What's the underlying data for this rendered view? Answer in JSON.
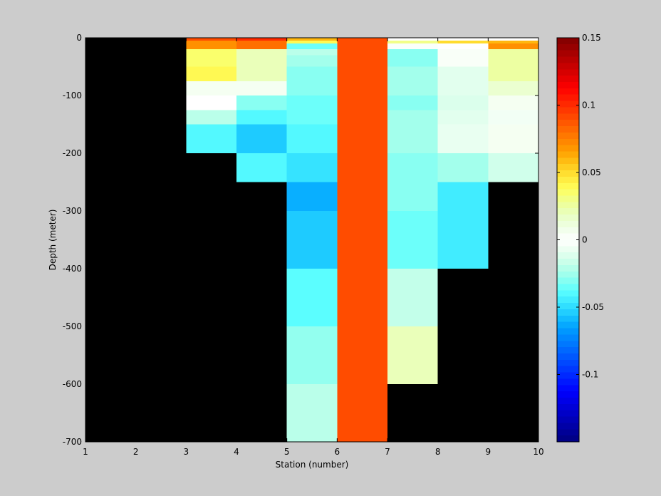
{
  "chart_data": {
    "type": "heatmap",
    "title": "",
    "xlabel": "Station (number)",
    "ylabel": "Depth (meter)",
    "xlim": [
      1,
      10
    ],
    "ylim": [
      -700,
      0
    ],
    "xticks": [
      1,
      2,
      3,
      4,
      5,
      6,
      7,
      8,
      9,
      10
    ],
    "yticks": [
      0,
      -100,
      -200,
      -300,
      -400,
      -500,
      -600,
      -700
    ],
    "background_color": "#000000",
    "colormap": "jet",
    "colorbar": {
      "clim": [
        -0.15,
        0.15
      ],
      "ticks": [
        0.15,
        0.1,
        0.05,
        0,
        -0.05,
        -0.1
      ],
      "tick_labels": [
        "0.15",
        "0.1",
        "0.05",
        "0",
        "-0.05",
        "-0.1"
      ],
      "placement": "right"
    },
    "columns": [
      {
        "x": [
          3,
          4
        ],
        "cells": [
          {
            "y": [
              -5,
              0
            ],
            "v": 0.09
          },
          {
            "y": [
              -20,
              -5
            ],
            "v": 0.07
          },
          {
            "y": [
              -50,
              -20
            ],
            "v": 0.035
          },
          {
            "y": [
              -75,
              -50
            ],
            "v": 0.04
          },
          {
            "y": [
              -100,
              -75
            ],
            "v": 0.005
          },
          {
            "y": [
              -125,
              -100
            ],
            "v": 0.0
          },
          {
            "y": [
              -150,
              -125
            ],
            "v": -0.02
          },
          {
            "y": [
              -200,
              -150
            ],
            "v": -0.04
          }
        ]
      },
      {
        "x": [
          4,
          5
        ],
        "cells": [
          {
            "y": [
              -5,
              0
            ],
            "v": 0.1
          },
          {
            "y": [
              -20,
              -5
            ],
            "v": 0.08
          },
          {
            "y": [
              -50,
              -20
            ],
            "v": 0.02
          },
          {
            "y": [
              -75,
              -50
            ],
            "v": 0.02
          },
          {
            "y": [
              -100,
              -75
            ],
            "v": 0.005
          },
          {
            "y": [
              -125,
              -100
            ],
            "v": -0.03
          },
          {
            "y": [
              -150,
              -125
            ],
            "v": -0.04
          },
          {
            "y": [
              -200,
              -150
            ],
            "v": -0.055
          },
          {
            "y": [
              -250,
              -200
            ],
            "v": -0.04
          }
        ]
      },
      {
        "x": [
          5,
          6
        ],
        "cells": [
          {
            "y": [
              -5,
              0
            ],
            "v": 0.06
          },
          {
            "y": [
              -10,
              -5
            ],
            "v": 0.04
          },
          {
            "y": [
              -20,
              -10
            ],
            "v": -0.035
          },
          {
            "y": [
              -30,
              -20
            ],
            "v": -0.02
          },
          {
            "y": [
              -50,
              -30
            ],
            "v": -0.025
          },
          {
            "y": [
              -100,
              -50
            ],
            "v": -0.03
          },
          {
            "y": [
              -125,
              -100
            ],
            "v": -0.035
          },
          {
            "y": [
              -150,
              -125
            ],
            "v": -0.035
          },
          {
            "y": [
              -200,
              -150
            ],
            "v": -0.04
          },
          {
            "y": [
              -250,
              -200
            ],
            "v": -0.048
          },
          {
            "y": [
              -300,
              -250
            ],
            "v": -0.062
          },
          {
            "y": [
              -400,
              -300
            ],
            "v": -0.055
          },
          {
            "y": [
              -500,
              -400
            ],
            "v": -0.038
          },
          {
            "y": [
              -600,
              -500
            ],
            "v": -0.028
          },
          {
            "y": [
              -700,
              -600
            ],
            "v": -0.02
          }
        ]
      },
      {
        "x": [
          6,
          7
        ],
        "cells": [
          {
            "y": [
              -700,
              0
            ],
            "v": 0.09
          }
        ]
      },
      {
        "x": [
          7,
          8
        ],
        "cells": [
          {
            "y": [
              -5,
              0
            ],
            "v": 0.0
          },
          {
            "y": [
              -10,
              -5
            ],
            "v": 0.03
          },
          {
            "y": [
              -20,
              -10
            ],
            "v": -0.002
          },
          {
            "y": [
              -50,
              -20
            ],
            "v": -0.03
          },
          {
            "y": [
              -100,
              -50
            ],
            "v": -0.025
          },
          {
            "y": [
              -125,
              -100
            ],
            "v": -0.03
          },
          {
            "y": [
              -150,
              -125
            ],
            "v": -0.025
          },
          {
            "y": [
              -200,
              -150
            ],
            "v": -0.025
          },
          {
            "y": [
              -250,
              -200
            ],
            "v": -0.03
          },
          {
            "y": [
              -300,
              -250
            ],
            "v": -0.03
          },
          {
            "y": [
              -400,
              -300
            ],
            "v": -0.035
          },
          {
            "y": [
              -500,
              -400
            ],
            "v": -0.018
          },
          {
            "y": [
              -600,
              -500
            ],
            "v": 0.02
          }
        ]
      },
      {
        "x": [
          8,
          9
        ],
        "cells": [
          {
            "y": [
              -5,
              0
            ],
            "v": 0.0
          },
          {
            "y": [
              -10,
              -5
            ],
            "v": 0.05
          },
          {
            "y": [
              -20,
              -10
            ],
            "v": 0.0
          },
          {
            "y": [
              -50,
              -20
            ],
            "v": 0.003
          },
          {
            "y": [
              -100,
              -50
            ],
            "v": -0.01
          },
          {
            "y": [
              -125,
              -100
            ],
            "v": -0.012
          },
          {
            "y": [
              -150,
              -125
            ],
            "v": -0.01
          },
          {
            "y": [
              -200,
              -150
            ],
            "v": -0.008
          },
          {
            "y": [
              -250,
              -200
            ],
            "v": -0.025
          },
          {
            "y": [
              -300,
              -250
            ],
            "v": -0.045
          },
          {
            "y": [
              -400,
              -300
            ],
            "v": -0.045
          }
        ]
      },
      {
        "x": [
          9,
          10
        ],
        "cells": [
          {
            "y": [
              -5,
              0
            ],
            "v": 0.0
          },
          {
            "y": [
              -10,
              -5
            ],
            "v": 0.06
          },
          {
            "y": [
              -20,
              -10
            ],
            "v": 0.07
          },
          {
            "y": [
              -50,
              -20
            ],
            "v": 0.025
          },
          {
            "y": [
              -75,
              -50
            ],
            "v": 0.025
          },
          {
            "y": [
              -100,
              -75
            ],
            "v": 0.015
          },
          {
            "y": [
              -125,
              -100
            ],
            "v": 0.005
          },
          {
            "y": [
              -150,
              -125
            ],
            "v": -0.005
          },
          {
            "y": [
              -200,
              -150
            ],
            "v": 0.005
          },
          {
            "y": [
              -250,
              -200
            ],
            "v": -0.015
          }
        ]
      }
    ]
  }
}
